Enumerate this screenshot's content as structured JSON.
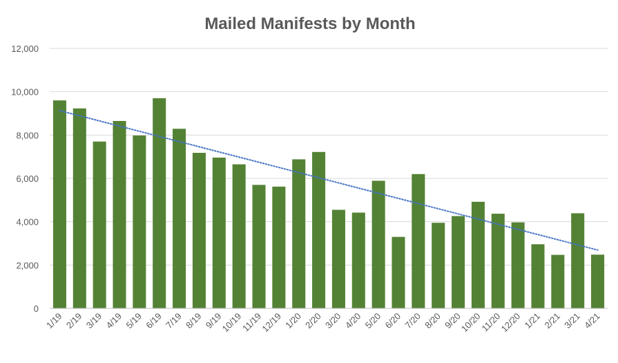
{
  "chart_data": {
    "type": "bar",
    "title": "Mailed Manifests by Month",
    "xlabel": "",
    "ylabel": "",
    "ylim": [
      0,
      12000
    ],
    "yticks": [
      0,
      2000,
      4000,
      6000,
      8000,
      10000,
      12000
    ],
    "ytick_labels": [
      "0",
      "2,000",
      "4,000",
      "6,000",
      "8,000",
      "10,000",
      "12,000"
    ],
    "grid": true,
    "legend": "none",
    "categories": [
      "1/19",
      "2/19",
      "3/19",
      "4/19",
      "5/19",
      "6/19",
      "7/19",
      "8/19",
      "9/19",
      "10/19",
      "11/19",
      "12/19",
      "1/20",
      "2/20",
      "3/20",
      "4/20",
      "5/20",
      "6/20",
      "7/20",
      "8/20",
      "9/20",
      "10/20",
      "11/20",
      "12/20",
      "1/21",
      "2/21",
      "3/21",
      "4/21"
    ],
    "values": [
      9600,
      9230,
      7700,
      8650,
      7980,
      9700,
      8290,
      7180,
      6960,
      6650,
      5700,
      5620,
      6880,
      7220,
      4550,
      4420,
      5890,
      3300,
      6200,
      3950,
      4260,
      4920,
      4370,
      3970,
      2960,
      2470,
      4390,
      2480
    ],
    "bar_color": "#548235",
    "trendline": {
      "type": "linear",
      "color": "#4472c4",
      "style": "dotted"
    }
  }
}
